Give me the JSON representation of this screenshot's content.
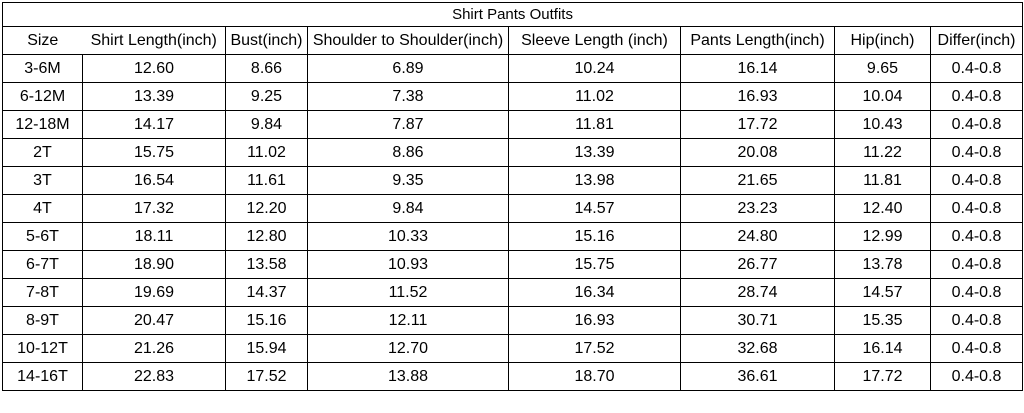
{
  "colors": {
    "border": "#000000",
    "text": "#000000",
    "background": "#ffffff"
  },
  "chart_data": {
    "type": "table",
    "title": "Shirt Pants Outfits",
    "columns": [
      "Size",
      "Shirt Length(inch)",
      "Bust(inch)",
      "Shoulder to Shoulder(inch)",
      "Sleeve Length (inch)",
      "Pants Length(inch)",
      "Hip(inch)",
      "Differ(inch)"
    ],
    "rows": [
      [
        "3-6M",
        "12.60",
        "8.66",
        "6.89",
        "10.24",
        "16.14",
        "9.65",
        "0.4-0.8"
      ],
      [
        "6-12M",
        "13.39",
        "9.25",
        "7.38",
        "11.02",
        "16.93",
        "10.04",
        "0.4-0.8"
      ],
      [
        "12-18M",
        "14.17",
        "9.84",
        "7.87",
        "11.81",
        "17.72",
        "10.43",
        "0.4-0.8"
      ],
      [
        "2T",
        "15.75",
        "11.02",
        "8.86",
        "13.39",
        "20.08",
        "11.22",
        "0.4-0.8"
      ],
      [
        "3T",
        "16.54",
        "11.61",
        "9.35",
        "13.98",
        "21.65",
        "11.81",
        "0.4-0.8"
      ],
      [
        "4T",
        "17.32",
        "12.20",
        "9.84",
        "14.57",
        "23.23",
        "12.40",
        "0.4-0.8"
      ],
      [
        "5-6T",
        "18.11",
        "12.80",
        "10.33",
        "15.16",
        "24.80",
        "12.99",
        "0.4-0.8"
      ],
      [
        "6-7T",
        "18.90",
        "13.58",
        "10.93",
        "15.75",
        "26.77",
        "13.78",
        "0.4-0.8"
      ],
      [
        "7-8T",
        "19.69",
        "14.37",
        "11.52",
        "16.34",
        "28.74",
        "14.57",
        "0.4-0.8"
      ],
      [
        "8-9T",
        "20.47",
        "15.16",
        "12.11",
        "16.93",
        "30.71",
        "15.35",
        "0.4-0.8"
      ],
      [
        "10-12T",
        "21.26",
        "15.94",
        "12.70",
        "17.52",
        "32.68",
        "16.14",
        "0.4-0.8"
      ],
      [
        "14-16T",
        "22.83",
        "17.52",
        "13.88",
        "18.70",
        "36.61",
        "17.72",
        "0.4-0.8"
      ]
    ]
  }
}
